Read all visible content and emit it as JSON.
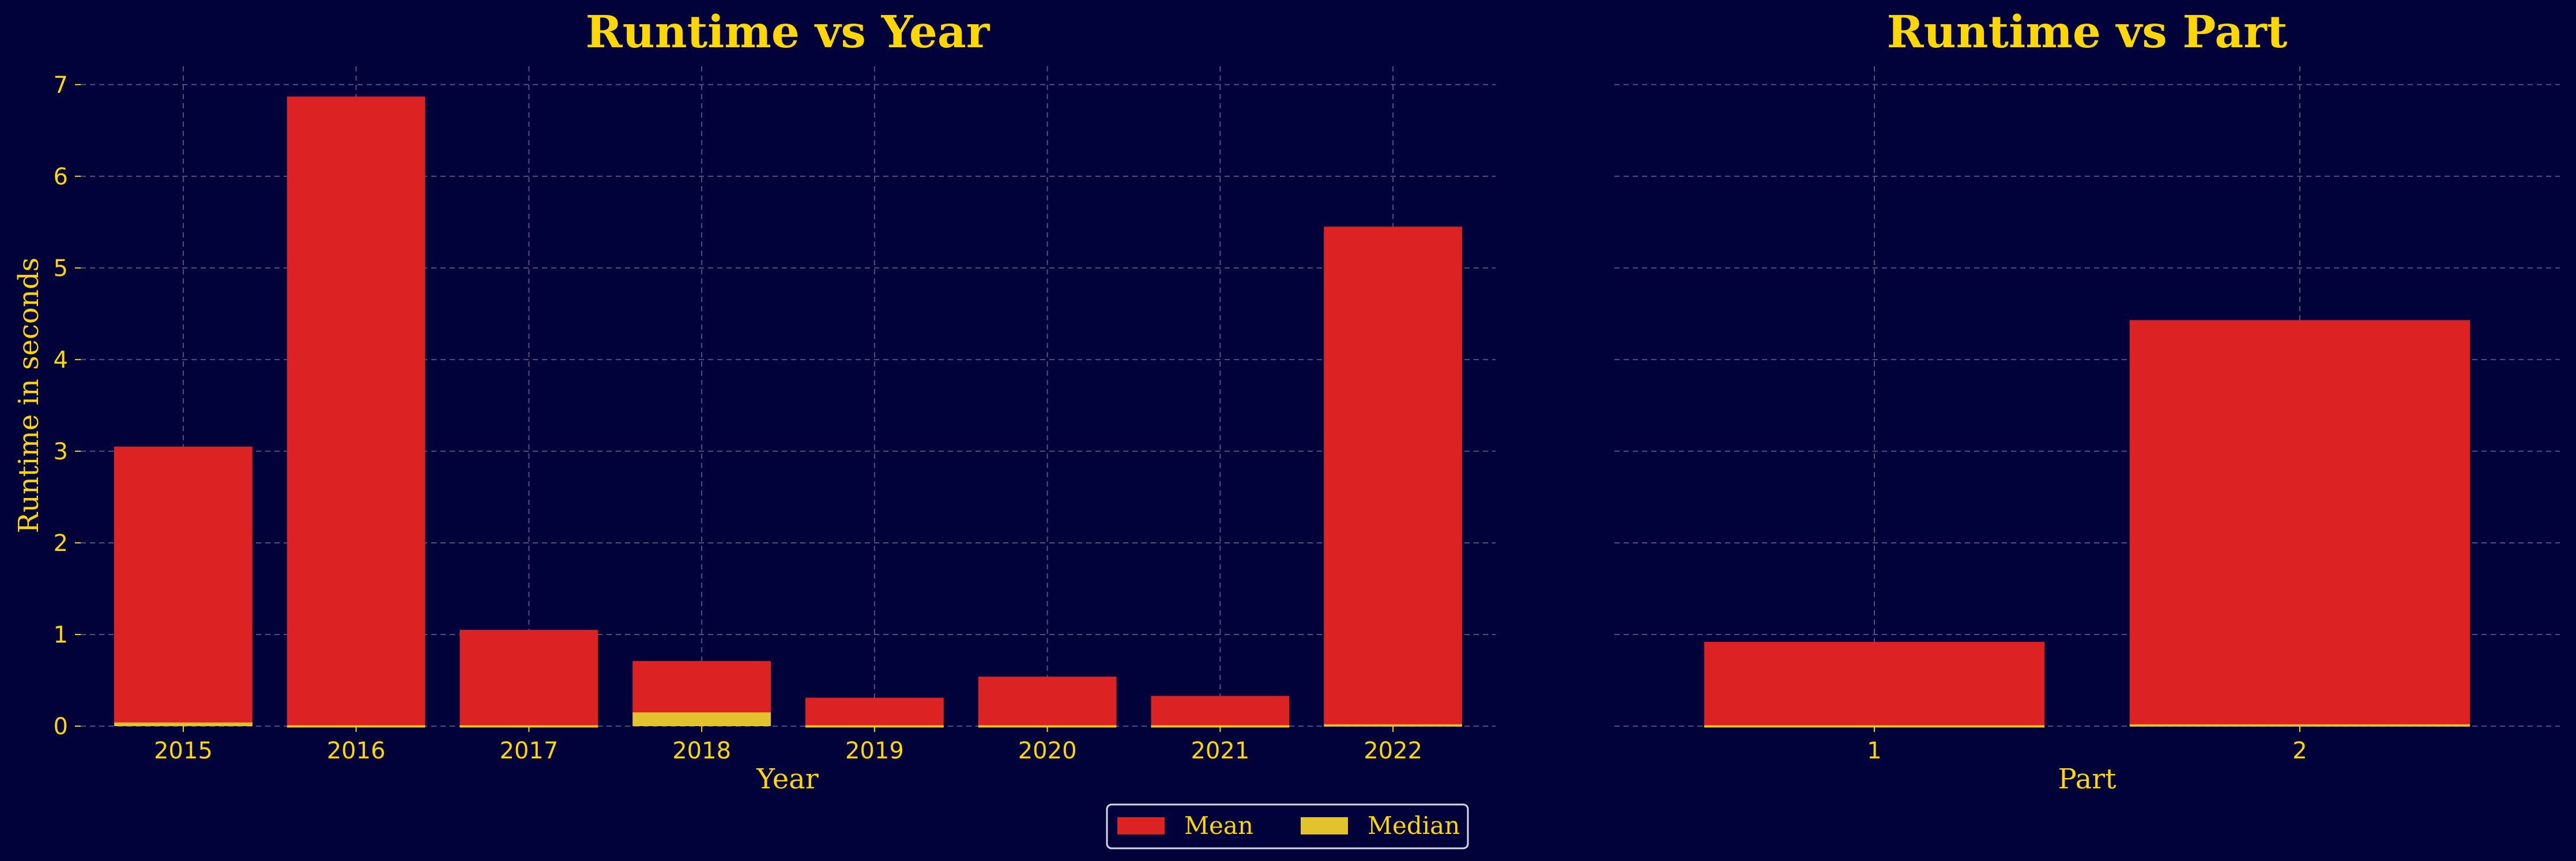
{
  "colors": {
    "background": "#02023a",
    "mean": "#dc2222",
    "median": "#e3c32c",
    "text": "#ffd700"
  },
  "legend": {
    "items": [
      {
        "label": "Mean",
        "color": "#dc2222"
      },
      {
        "label": "Median",
        "color": "#e3c32c"
      }
    ],
    "placement": "bottom-center"
  },
  "chart_data": [
    {
      "type": "bar",
      "title": "Runtime vs Year",
      "xlabel": "Year",
      "ylabel": "Runtime in seconds",
      "categories": [
        "2015",
        "2016",
        "2017",
        "2018",
        "2019",
        "2020",
        "2021",
        "2022"
      ],
      "series": [
        {
          "name": "Mean",
          "values": [
            3.05,
            6.87,
            1.05,
            0.71,
            0.31,
            0.54,
            0.33,
            5.45
          ]
        },
        {
          "name": "Median",
          "values": [
            0.04,
            0.01,
            0.01,
            0.15,
            0.01,
            0.01,
            0.01,
            0.02
          ]
        }
      ],
      "ylim": [
        0,
        7.2
      ],
      "yticks": [
        "0",
        "1",
        "2",
        "3",
        "4",
        "5",
        "6",
        "7"
      ],
      "grid": true
    },
    {
      "type": "bar",
      "title": "Runtime vs Part",
      "xlabel": "Part",
      "ylabel": "",
      "categories": [
        "1",
        "2"
      ],
      "series": [
        {
          "name": "Mean",
          "values": [
            0.92,
            4.43
          ]
        },
        {
          "name": "Median",
          "values": [
            0.01,
            0.02
          ]
        }
      ],
      "ylim": [
        0,
        7.2
      ],
      "grid": true
    }
  ]
}
